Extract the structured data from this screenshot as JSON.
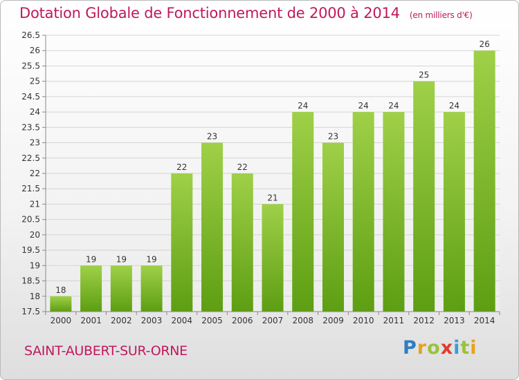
{
  "header": {
    "title": "Dotation Globale de Fonctionnement de 2000 à 2014",
    "subtitle": "(en milliers d'€)"
  },
  "footer": {
    "town": "SAINT-AUBERT-SUR-ORNE",
    "logo": "Proxiti"
  },
  "colors": {
    "title": "#c0185c",
    "bar_top": "#9fd048",
    "bar_bottom": "#5d9e12"
  },
  "chart_data": {
    "type": "bar",
    "categories": [
      "2000",
      "2001",
      "2002",
      "2003",
      "2004",
      "2005",
      "2006",
      "2007",
      "2008",
      "2009",
      "2010",
      "2011",
      "2012",
      "2013",
      "2014"
    ],
    "values": [
      18,
      19,
      19,
      19,
      22,
      23,
      22,
      21,
      24,
      23,
      24,
      24,
      25,
      24,
      26
    ],
    "ylim": [
      17.5,
      26.5
    ],
    "yticks": [
      "17.5",
      "18",
      "18.5",
      "19",
      "19.5",
      "20",
      "20.5",
      "21",
      "21.5",
      "22",
      "22.5",
      "23",
      "23.5",
      "24",
      "24.5",
      "25",
      "25.5",
      "26",
      "26.5"
    ],
    "grid": true,
    "data_labels": true
  }
}
